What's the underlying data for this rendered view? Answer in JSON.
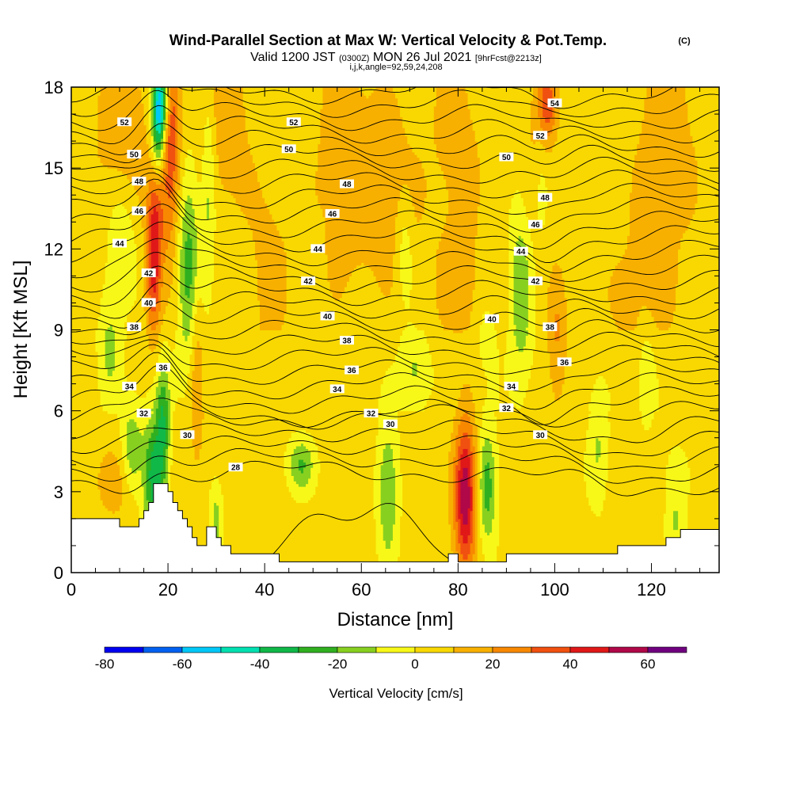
{
  "chart_data": {
    "type": "heatmap",
    "title": "Wind-Parallel Section at Max W: Vertical Velocity & Pot.Temp.",
    "title_mark": "(C)",
    "subtitle": {
      "valid_prefix": "Valid 1200 JST",
      "utc": "(0300Z)",
      "date": "MON 26 Jul 2021",
      "forecast": "[9hrFcst@2213z]",
      "params": "i,j,k,angle=92,59,24,208"
    },
    "xlabel": "Distance [nm]",
    "ylabel": "Height [Kft MSL]",
    "xlim": [
      0,
      134
    ],
    "ylim": [
      0,
      18
    ],
    "xticks": [
      0,
      20,
      40,
      60,
      80,
      100,
      120
    ],
    "yticks": [
      0,
      3,
      6,
      9,
      12,
      15,
      18
    ],
    "colorbar": {
      "label": "Vertical Velocity [cm/s]",
      "min": -80,
      "max": 70,
      "tick_values": [
        -80,
        -60,
        -40,
        -20,
        0,
        20,
        40,
        60
      ],
      "colors": [
        "#0000f0",
        "#0060f0",
        "#00c8f8",
        "#00e0b0",
        "#10b848",
        "#30b020",
        "#88d020",
        "#f8f818",
        "#f8d800",
        "#f8b000",
        "#f88800",
        "#f05010",
        "#e01818",
        "#b00848",
        "#700080"
      ]
    },
    "theta_contours_K": [
      28,
      30,
      32,
      34,
      36,
      38,
      40,
      42,
      44,
      46,
      48,
      50,
      52,
      54
    ],
    "theta_labels": [
      {
        "text": "28",
        "x": 34,
        "y": 3.9
      },
      {
        "text": "30",
        "x": 24,
        "y": 5.1
      },
      {
        "text": "30",
        "x": 66,
        "y": 5.5
      },
      {
        "text": "30",
        "x": 97,
        "y": 5.1
      },
      {
        "text": "32",
        "x": 15,
        "y": 5.9
      },
      {
        "text": "32",
        "x": 62,
        "y": 5.9
      },
      {
        "text": "32",
        "x": 90,
        "y": 6.1
      },
      {
        "text": "34",
        "x": 12,
        "y": 6.9
      },
      {
        "text": "34",
        "x": 55,
        "y": 6.8
      },
      {
        "text": "34",
        "x": 91,
        "y": 6.9
      },
      {
        "text": "36",
        "x": 19,
        "y": 7.6
      },
      {
        "text": "36",
        "x": 58,
        "y": 7.5
      },
      {
        "text": "36",
        "x": 102,
        "y": 7.8
      },
      {
        "text": "38",
        "x": 13,
        "y": 9.1
      },
      {
        "text": "38",
        "x": 57,
        "y": 8.6
      },
      {
        "text": "38",
        "x": 99,
        "y": 9.1
      },
      {
        "text": "40",
        "x": 16,
        "y": 10.0
      },
      {
        "text": "40",
        "x": 53,
        "y": 9.5
      },
      {
        "text": "40",
        "x": 87,
        "y": 9.4
      },
      {
        "text": "42",
        "x": 16,
        "y": 11.1
      },
      {
        "text": "42",
        "x": 49,
        "y": 10.8
      },
      {
        "text": "42",
        "x": 96,
        "y": 10.8
      },
      {
        "text": "44",
        "x": 10,
        "y": 12.2
      },
      {
        "text": "44",
        "x": 51,
        "y": 12.0
      },
      {
        "text": "44",
        "x": 93,
        "y": 11.9
      },
      {
        "text": "46",
        "x": 14,
        "y": 13.4
      },
      {
        "text": "46",
        "x": 54,
        "y": 13.3
      },
      {
        "text": "46",
        "x": 96,
        "y": 12.9
      },
      {
        "text": "48",
        "x": 14,
        "y": 14.5
      },
      {
        "text": "48",
        "x": 57,
        "y": 14.4
      },
      {
        "text": "48",
        "x": 98,
        "y": 13.9
      },
      {
        "text": "50",
        "x": 13,
        "y": 15.5
      },
      {
        "text": "50",
        "x": 45,
        "y": 15.7
      },
      {
        "text": "50",
        "x": 90,
        "y": 15.4
      },
      {
        "text": "52",
        "x": 11,
        "y": 16.7
      },
      {
        "text": "52",
        "x": 46,
        "y": 16.7
      },
      {
        "text": "52",
        "x": 97,
        "y": 16.2
      },
      {
        "text": "54",
        "x": 100,
        "y": 17.4
      }
    ],
    "terrain_kft": [
      [
        0,
        2.0
      ],
      [
        5,
        2.0
      ],
      [
        5,
        2.0
      ],
      [
        10,
        2.0
      ],
      [
        10,
        1.7
      ],
      [
        14,
        1.7
      ],
      [
        14,
        2.0
      ],
      [
        15,
        2.0
      ],
      [
        15,
        2.3
      ],
      [
        16,
        2.3
      ],
      [
        16,
        2.6
      ],
      [
        17,
        2.6
      ],
      [
        17,
        3.3
      ],
      [
        20,
        3.3
      ],
      [
        20,
        3.0
      ],
      [
        21,
        3.0
      ],
      [
        21,
        2.6
      ],
      [
        22,
        2.6
      ],
      [
        22,
        2.3
      ],
      [
        23,
        2.3
      ],
      [
        23,
        2.0
      ],
      [
        24,
        2.0
      ],
      [
        24,
        1.7
      ],
      [
        25,
        1.7
      ],
      [
        25,
        1.3
      ],
      [
        26,
        1.3
      ],
      [
        26,
        1.0
      ],
      [
        28,
        1.0
      ],
      [
        28,
        1.7
      ],
      [
        30,
        1.7
      ],
      [
        30,
        1.3
      ],
      [
        31,
        1.3
      ],
      [
        31,
        1.0
      ],
      [
        33,
        1.0
      ],
      [
        33,
        0.7
      ],
      [
        43,
        0.7
      ],
      [
        43,
        0.4
      ],
      [
        78,
        0.4
      ],
      [
        78,
        0.7
      ],
      [
        80,
        0.7
      ],
      [
        80,
        0.4
      ],
      [
        90,
        0.4
      ],
      [
        90,
        0.7
      ],
      [
        113,
        0.7
      ],
      [
        113,
        1.0
      ],
      [
        123,
        1.0
      ],
      [
        123,
        1.3
      ],
      [
        126,
        1.3
      ],
      [
        126,
        1.6
      ],
      [
        134,
        1.6
      ]
    ],
    "updrafts": [
      {
        "x": 81.5,
        "y": 2.9,
        "sx": 1.6,
        "sy": 1.9,
        "w": 55
      },
      {
        "x": 20.5,
        "y": 16.0,
        "sx": 1.4,
        "sy": 3.0,
        "w": 35
      },
      {
        "x": 17.0,
        "y": 11.0,
        "sx": 1.1,
        "sy": 1.7,
        "w": 35
      },
      {
        "x": 17.5,
        "y": 13.5,
        "sx": 1.2,
        "sy": 1.5,
        "w": 25
      },
      {
        "x": 98.5,
        "y": 17.4,
        "sx": 1.3,
        "sy": 1.0,
        "w": 30
      },
      {
        "x": 96.5,
        "y": 15.5,
        "sx": 1.6,
        "sy": 2.5,
        "w": 15
      },
      {
        "x": 11.0,
        "y": 16.5,
        "sx": 5.0,
        "sy": 2.2,
        "w": 12
      },
      {
        "x": 32.0,
        "y": 16.5,
        "sx": 4.0,
        "sy": 2.5,
        "w": 12
      },
      {
        "x": 57.0,
        "y": 15.0,
        "sx": 5.0,
        "sy": 3.5,
        "w": 12
      },
      {
        "x": 80.0,
        "y": 16.0,
        "sx": 4.0,
        "sy": 3.0,
        "w": 10
      },
      {
        "x": 80.0,
        "y": 10.5,
        "sx": 3.0,
        "sy": 1.5,
        "w": 12
      },
      {
        "x": 123.0,
        "y": 16.0,
        "sx": 5.0,
        "sy": 3.0,
        "w": 12
      },
      {
        "x": 10.0,
        "y": 3.4,
        "sx": 4.0,
        "sy": 1.0,
        "w": 11
      },
      {
        "x": 26.0,
        "y": 8.0,
        "sx": 1.0,
        "sy": 3.0,
        "w": 18
      },
      {
        "x": 100.5,
        "y": 8.5,
        "sx": 1.4,
        "sy": 1.8,
        "w": 18
      },
      {
        "x": 67.0,
        "y": 14.0,
        "sx": 4.0,
        "sy": 2.5,
        "w": 10
      },
      {
        "x": 118.0,
        "y": 10.0,
        "sx": 5.0,
        "sy": 2.0,
        "w": 10
      },
      {
        "x": 41.0,
        "y": 11.0,
        "sx": 3.0,
        "sy": 2.5,
        "w": 10
      }
    ],
    "downdrafts": [
      {
        "x": 17.0,
        "y": 3.5,
        "sx": 1.5,
        "sy": 1.6,
        "w": -40
      },
      {
        "x": 19.0,
        "y": 5.5,
        "sx": 1.0,
        "sy": 1.6,
        "w": -30
      },
      {
        "x": 24.5,
        "y": 11.5,
        "sx": 1.8,
        "sy": 2.5,
        "w": -30
      },
      {
        "x": 18.5,
        "y": 17.5,
        "sx": 1.2,
        "sy": 1.0,
        "w": -60
      },
      {
        "x": 18.0,
        "y": 16.0,
        "sx": 1.0,
        "sy": 1.2,
        "w": -35
      },
      {
        "x": 86.0,
        "y": 3.2,
        "sx": 1.4,
        "sy": 1.5,
        "w": -30
      },
      {
        "x": 65.5,
        "y": 3.0,
        "sx": 1.5,
        "sy": 1.8,
        "w": -25
      },
      {
        "x": 47.5,
        "y": 4.0,
        "sx": 2.0,
        "sy": 0.7,
        "w": -24
      },
      {
        "x": 12.5,
        "y": 4.5,
        "sx": 1.5,
        "sy": 1.2,
        "w": -25
      },
      {
        "x": 93.0,
        "y": 10.5,
        "sx": 1.6,
        "sy": 2.3,
        "w": -22
      },
      {
        "x": 97.0,
        "y": 14.5,
        "sx": 1.2,
        "sy": 1.8,
        "w": -18
      },
      {
        "x": 10.5,
        "y": 12.0,
        "sx": 2.0,
        "sy": 1.5,
        "w": -15
      },
      {
        "x": 8.0,
        "y": 8.5,
        "sx": 1.5,
        "sy": 1.5,
        "w": -15
      },
      {
        "x": 71.0,
        "y": 7.5,
        "sx": 2.0,
        "sy": 1.0,
        "w": -15
      },
      {
        "x": 69.0,
        "y": 12.0,
        "sx": 1.2,
        "sy": 1.5,
        "w": -15
      },
      {
        "x": 30.0,
        "y": 2.0,
        "sx": 1.0,
        "sy": 1.0,
        "w": -18
      },
      {
        "x": 28.5,
        "y": 14.5,
        "sx": 1.0,
        "sy": 2.5,
        "w": -18
      },
      {
        "x": 109.0,
        "y": 4.5,
        "sx": 1.5,
        "sy": 1.5,
        "w": -15
      },
      {
        "x": 125.0,
        "y": 3.5,
        "sx": 1.5,
        "sy": 0.8,
        "w": -14
      },
      {
        "x": 125.0,
        "y": 1.8,
        "sx": 1.5,
        "sy": 0.6,
        "w": -14
      },
      {
        "x": 86.0,
        "y": 8.8,
        "sx": 1.2,
        "sy": 0.8,
        "w": -12
      },
      {
        "x": 119.0,
        "y": 7.5,
        "sx": 1.5,
        "sy": 1.5,
        "w": -14
      }
    ]
  }
}
